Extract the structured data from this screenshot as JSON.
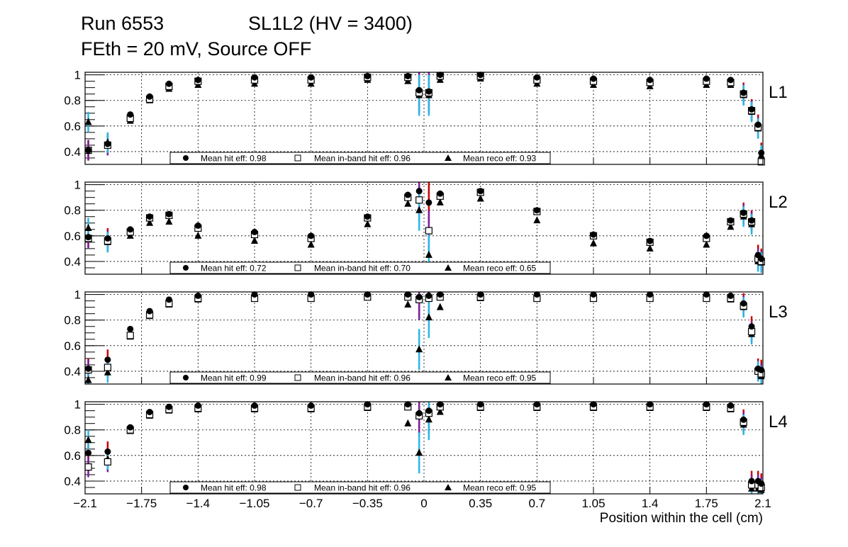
{
  "header": {
    "run": "Run 6553",
    "chamber": "SL1L2 (HV = 3400)",
    "conditions": "FEth = 20 mV, Source OFF"
  },
  "chart_data": {
    "type": "scatter",
    "title": "Run 6553 SL1L2 (HV = 3400) — FEth = 20 mV, Source OFF",
    "xlabel": "Position within the cell (cm)",
    "xlim": [
      -2.1,
      2.1
    ],
    "ylim": [
      0.3,
      1.02
    ],
    "x_tick_labels": [
      "−2.1",
      "−1.75",
      "−1.4",
      "−1.05",
      "−0.7",
      "−0.35",
      "0",
      "0.35",
      "0.7",
      "1.05",
      "1.4",
      "1.75",
      "2.1"
    ],
    "x_ticks": [
      -2.1,
      -1.75,
      -1.4,
      -1.05,
      -0.7,
      -0.35,
      0,
      0.35,
      0.7,
      1.05,
      1.4,
      1.75,
      2.1
    ],
    "y_tick_labels": [
      "0.4",
      "0.6",
      "0.8",
      "1"
    ],
    "y_ticks": [
      0.4,
      0.6,
      0.8,
      1.0
    ],
    "grid": true,
    "legend_labels": {
      "hit": "Mean hit  eff: ",
      "inband": "Mean in-band hit eff: ",
      "reco": "Mean reco eff: "
    },
    "series_styles": {
      "hit": {
        "marker": "filled-circle",
        "error_color": "#cc0000"
      },
      "inband": {
        "marker": "open-square",
        "error_color": "#7a1fa2"
      },
      "reco": {
        "marker": "filled-triangle",
        "error_color": "#29b6e6"
      }
    },
    "panels": [
      {
        "layer": "L1",
        "mean_hit_eff": "0.98",
        "mean_inband_eff": "0.96",
        "mean_reco_eff": "0.93",
        "hit": [
          [
            -2.08,
            0.41
          ],
          [
            -1.96,
            0.46
          ],
          [
            -1.82,
            0.69
          ],
          [
            -1.7,
            0.83
          ],
          [
            -1.58,
            0.93
          ],
          [
            -1.4,
            0.96
          ],
          [
            -1.05,
            0.98
          ],
          [
            -0.7,
            0.98
          ],
          [
            -0.35,
            0.99
          ],
          [
            -0.1,
            0.99
          ],
          [
            -0.03,
            0.88
          ],
          [
            0.03,
            0.87
          ],
          [
            0.1,
            1.0
          ],
          [
            0.35,
            1.0
          ],
          [
            0.7,
            0.98
          ],
          [
            1.05,
            0.97
          ],
          [
            1.4,
            0.96
          ],
          [
            1.75,
            0.97
          ],
          [
            1.9,
            0.96
          ],
          [
            1.98,
            0.86
          ],
          [
            2.03,
            0.73
          ],
          [
            2.07,
            0.61
          ],
          [
            2.09,
            0.39
          ]
        ],
        "inband": [
          [
            -2.08,
            0.41
          ],
          [
            -1.96,
            0.45
          ],
          [
            -1.82,
            0.66
          ],
          [
            -1.7,
            0.81
          ],
          [
            -1.58,
            0.91
          ],
          [
            -1.4,
            0.95
          ],
          [
            -1.05,
            0.96
          ],
          [
            -0.7,
            0.96
          ],
          [
            -0.35,
            0.98
          ],
          [
            -0.1,
            0.98
          ],
          [
            -0.03,
            0.86
          ],
          [
            0.03,
            0.86
          ],
          [
            0.1,
            0.99
          ],
          [
            0.35,
            0.99
          ],
          [
            0.7,
            0.96
          ],
          [
            1.05,
            0.95
          ],
          [
            1.4,
            0.94
          ],
          [
            1.75,
            0.95
          ],
          [
            1.9,
            0.94
          ],
          [
            1.98,
            0.85
          ],
          [
            2.03,
            0.72
          ],
          [
            2.07,
            0.59
          ],
          [
            2.09,
            0.32
          ]
        ],
        "reco": [
          [
            -2.08,
            0.63
          ],
          [
            -1.96,
            0.47
          ],
          [
            -1.82,
            0.64
          ],
          [
            -1.7,
            0.8
          ],
          [
            -1.58,
            0.89
          ],
          [
            -1.4,
            0.92
          ],
          [
            -1.05,
            0.93
          ],
          [
            -0.7,
            0.93
          ],
          [
            -0.35,
            0.96
          ],
          [
            -0.1,
            0.95
          ],
          [
            -0.03,
            0.84
          ],
          [
            0.03,
            0.84
          ],
          [
            0.1,
            0.96
          ],
          [
            0.35,
            0.97
          ],
          [
            0.7,
            0.93
          ],
          [
            1.05,
            0.92
          ],
          [
            1.4,
            0.91
          ],
          [
            1.75,
            0.92
          ],
          [
            1.9,
            0.92
          ],
          [
            1.98,
            0.84
          ],
          [
            2.03,
            0.71
          ],
          [
            2.07,
            0.58
          ],
          [
            2.09,
            0.37
          ]
        ]
      },
      {
        "layer": "L2",
        "mean_hit_eff": "0.72",
        "mean_inband_eff": "0.70",
        "mean_reco_eff": "0.65",
        "hit": [
          [
            -2.08,
            0.59
          ],
          [
            -1.96,
            0.58
          ],
          [
            -1.82,
            0.65
          ],
          [
            -1.7,
            0.75
          ],
          [
            -1.58,
            0.77
          ],
          [
            -1.4,
            0.68
          ],
          [
            -1.05,
            0.63
          ],
          [
            -0.7,
            0.6
          ],
          [
            -0.35,
            0.75
          ],
          [
            -0.1,
            0.92
          ],
          [
            -0.03,
            0.95
          ],
          [
            0.03,
            0.86
          ],
          [
            0.1,
            0.93
          ],
          [
            0.35,
            0.95
          ],
          [
            0.7,
            0.8
          ],
          [
            1.05,
            0.61
          ],
          [
            1.4,
            0.56
          ],
          [
            1.75,
            0.6
          ],
          [
            1.9,
            0.72
          ],
          [
            1.98,
            0.78
          ],
          [
            2.03,
            0.72
          ],
          [
            2.07,
            0.45
          ],
          [
            2.09,
            0.42
          ]
        ],
        "inband": [
          [
            -2.08,
            0.58
          ],
          [
            -1.96,
            0.56
          ],
          [
            -1.82,
            0.63
          ],
          [
            -1.7,
            0.74
          ],
          [
            -1.58,
            0.76
          ],
          [
            -1.4,
            0.66
          ],
          [
            -1.05,
            0.61
          ],
          [
            -0.7,
            0.58
          ],
          [
            -0.35,
            0.74
          ],
          [
            -0.1,
            0.9
          ],
          [
            -0.03,
            0.88
          ],
          [
            0.03,
            0.64
          ],
          [
            0.1,
            0.91
          ],
          [
            0.35,
            0.94
          ],
          [
            0.7,
            0.79
          ],
          [
            1.05,
            0.6
          ],
          [
            1.4,
            0.55
          ],
          [
            1.75,
            0.58
          ],
          [
            1.9,
            0.71
          ],
          [
            1.98,
            0.77
          ],
          [
            2.03,
            0.71
          ],
          [
            2.07,
            0.42
          ],
          [
            2.09,
            0.4
          ]
        ],
        "reco": [
          [
            -2.08,
            0.66
          ],
          [
            -1.96,
            0.55
          ],
          [
            -1.82,
            0.6
          ],
          [
            -1.7,
            0.7
          ],
          [
            -1.58,
            0.71
          ],
          [
            -1.4,
            0.6
          ],
          [
            -1.05,
            0.56
          ],
          [
            -0.7,
            0.53
          ],
          [
            -0.35,
            0.69
          ],
          [
            -0.1,
            0.85
          ],
          [
            -0.03,
            0.8
          ],
          [
            0.03,
            0.45
          ],
          [
            0.1,
            0.86
          ],
          [
            0.35,
            0.89
          ],
          [
            0.7,
            0.72
          ],
          [
            1.05,
            0.54
          ],
          [
            1.4,
            0.5
          ],
          [
            1.75,
            0.53
          ],
          [
            1.9,
            0.67
          ],
          [
            1.98,
            0.75
          ],
          [
            2.03,
            0.69
          ],
          [
            2.07,
            0.4
          ],
          [
            2.09,
            0.39
          ]
        ]
      },
      {
        "layer": "L3",
        "mean_hit_eff": "0.99",
        "mean_inband_eff": "0.96",
        "mean_reco_eff": "0.95",
        "hit": [
          [
            -2.08,
            0.42
          ],
          [
            -1.96,
            0.49
          ],
          [
            -1.82,
            0.73
          ],
          [
            -1.7,
            0.87
          ],
          [
            -1.58,
            0.96
          ],
          [
            -1.4,
            0.99
          ],
          [
            -1.05,
            1.0
          ],
          [
            -0.7,
            1.0
          ],
          [
            -0.35,
            1.0
          ],
          [
            -0.1,
            1.0
          ],
          [
            -0.03,
            0.98
          ],
          [
            0.03,
            0.99
          ],
          [
            0.1,
            1.0
          ],
          [
            0.35,
            1.0
          ],
          [
            0.7,
            1.0
          ],
          [
            1.05,
            1.0
          ],
          [
            1.4,
            1.0
          ],
          [
            1.75,
            1.0
          ],
          [
            1.9,
            0.99
          ],
          [
            1.98,
            0.93
          ],
          [
            2.03,
            0.75
          ],
          [
            2.07,
            0.42
          ],
          [
            2.09,
            0.41
          ]
        ],
        "inband": [
          [
            -2.08,
            0.41
          ],
          [
            -1.96,
            0.43
          ],
          [
            -1.82,
            0.68
          ],
          [
            -1.7,
            0.84
          ],
          [
            -1.58,
            0.93
          ],
          [
            -1.4,
            0.97
          ],
          [
            -1.05,
            0.97
          ],
          [
            -0.7,
            0.97
          ],
          [
            -0.35,
            0.98
          ],
          [
            -0.1,
            0.98
          ],
          [
            -0.03,
            0.96
          ],
          [
            0.03,
            0.97
          ],
          [
            0.1,
            0.98
          ],
          [
            0.35,
            0.98
          ],
          [
            0.7,
            0.97
          ],
          [
            1.05,
            0.97
          ],
          [
            1.4,
            0.97
          ],
          [
            1.75,
            0.97
          ],
          [
            1.9,
            0.97
          ],
          [
            1.98,
            0.91
          ],
          [
            2.03,
            0.71
          ],
          [
            2.07,
            0.4
          ],
          [
            2.09,
            0.38
          ]
        ],
        "reco": [
          [
            -2.08,
            0.33
          ],
          [
            -1.96,
            0.39
          ],
          [
            -1.82,
            0.67
          ],
          [
            -1.7,
            0.83
          ],
          [
            -1.58,
            0.92
          ],
          [
            -1.4,
            0.96
          ],
          [
            -1.05,
            0.97
          ],
          [
            -0.7,
            0.97
          ],
          [
            -0.35,
            0.98
          ],
          [
            -0.1,
            0.92
          ],
          [
            -0.03,
            0.57
          ],
          [
            0.03,
            0.82
          ],
          [
            0.1,
            0.9
          ],
          [
            0.35,
            0.97
          ],
          [
            0.7,
            0.97
          ],
          [
            1.05,
            0.97
          ],
          [
            1.4,
            0.97
          ],
          [
            1.75,
            0.97
          ],
          [
            1.9,
            0.96
          ],
          [
            1.98,
            0.9
          ],
          [
            2.03,
            0.69
          ],
          [
            2.07,
            0.4
          ],
          [
            2.09,
            0.36
          ]
        ]
      },
      {
        "layer": "L4",
        "mean_hit_eff": "0.98",
        "mean_inband_eff": "0.96",
        "mean_reco_eff": "0.95",
        "hit": [
          [
            -2.08,
            0.62
          ],
          [
            -1.96,
            0.63
          ],
          [
            -1.82,
            0.82
          ],
          [
            -1.7,
            0.94
          ],
          [
            -1.58,
            0.98
          ],
          [
            -1.4,
            0.99
          ],
          [
            -1.05,
            0.99
          ],
          [
            -0.7,
            0.99
          ],
          [
            -0.35,
            1.0
          ],
          [
            -0.1,
            1.0
          ],
          [
            -0.03,
            0.93
          ],
          [
            0.03,
            0.95
          ],
          [
            0.1,
            1.0
          ],
          [
            0.35,
            1.0
          ],
          [
            0.7,
            1.0
          ],
          [
            1.05,
            1.0
          ],
          [
            1.4,
            1.0
          ],
          [
            1.75,
            1.0
          ],
          [
            1.9,
            0.99
          ],
          [
            1.98,
            0.88
          ],
          [
            2.03,
            0.4
          ],
          [
            2.07,
            0.4
          ],
          [
            2.09,
            0.38
          ]
        ],
        "inband": [
          [
            -2.08,
            0.51
          ],
          [
            -1.96,
            0.55
          ],
          [
            -1.82,
            0.8
          ],
          [
            -1.7,
            0.92
          ],
          [
            -1.58,
            0.96
          ],
          [
            -1.4,
            0.97
          ],
          [
            -1.05,
            0.97
          ],
          [
            -0.7,
            0.97
          ],
          [
            -0.35,
            0.98
          ],
          [
            -0.1,
            0.98
          ],
          [
            -0.03,
            0.91
          ],
          [
            0.03,
            0.93
          ],
          [
            0.1,
            0.98
          ],
          [
            0.35,
            0.98
          ],
          [
            0.7,
            0.98
          ],
          [
            1.05,
            0.98
          ],
          [
            1.4,
            0.98
          ],
          [
            1.75,
            0.98
          ],
          [
            1.9,
            0.97
          ],
          [
            1.98,
            0.86
          ],
          [
            2.03,
            0.37
          ],
          [
            2.07,
            0.37
          ],
          [
            2.09,
            0.35
          ]
        ],
        "reco": [
          [
            -2.08,
            0.72
          ],
          [
            -1.96,
            0.57
          ],
          [
            -1.82,
            0.79
          ],
          [
            -1.7,
            0.91
          ],
          [
            -1.58,
            0.95
          ],
          [
            -1.4,
            0.96
          ],
          [
            -1.05,
            0.96
          ],
          [
            -0.7,
            0.96
          ],
          [
            -0.35,
            0.97
          ],
          [
            -0.1,
            0.85
          ],
          [
            -0.03,
            0.62
          ],
          [
            0.03,
            0.88
          ],
          [
            0.1,
            0.94
          ],
          [
            0.35,
            0.97
          ],
          [
            0.7,
            0.97
          ],
          [
            1.05,
            0.97
          ],
          [
            1.4,
            0.97
          ],
          [
            1.75,
            0.97
          ],
          [
            1.9,
            0.96
          ],
          [
            1.98,
            0.84
          ],
          [
            2.03,
            0.34
          ],
          [
            2.07,
            0.34
          ],
          [
            2.09,
            0.33
          ]
        ]
      }
    ]
  }
}
